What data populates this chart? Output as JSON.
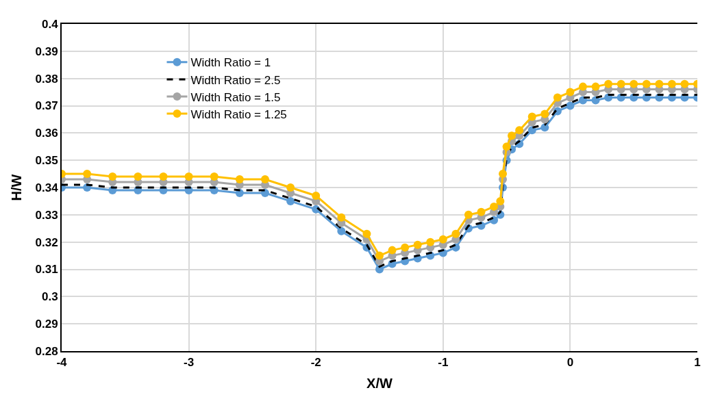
{
  "chart_data": {
    "type": "line",
    "xlabel": "X/W",
    "ylabel": "H/W",
    "x": [
      -4,
      -3.8,
      -3.6,
      -3.4,
      -3.2,
      -3,
      -2.8,
      -2.6,
      -2.4,
      -2.2,
      -2,
      -1.8,
      -1.6,
      -1.5,
      -1.4,
      -1.3,
      -1.2,
      -1.1,
      -1,
      -0.9,
      -0.8,
      -0.7,
      -0.6,
      -0.55,
      -0.53,
      -0.5,
      -0.46,
      -0.4,
      -0.3,
      -0.2,
      -0.1,
      0,
      0.1,
      0.2,
      0.3,
      0.4,
      0.5,
      0.6,
      0.7,
      0.8,
      0.9,
      1
    ],
    "series": [
      {
        "name": "Width Ratio = 1",
        "color": "#5b9bd5",
        "marker": "circle",
        "line_style": "solid",
        "values": [
          0.34,
          0.34,
          0.339,
          0.339,
          0.339,
          0.339,
          0.339,
          0.338,
          0.338,
          0.335,
          0.332,
          0.324,
          0.318,
          0.31,
          0.312,
          0.313,
          0.314,
          0.315,
          0.316,
          0.318,
          0.325,
          0.326,
          0.328,
          0.33,
          0.34,
          0.35,
          0.354,
          0.356,
          0.361,
          0.362,
          0.368,
          0.37,
          0.372,
          0.372,
          0.373,
          0.373,
          0.373,
          0.373,
          0.373,
          0.373,
          0.373,
          0.373
        ]
      },
      {
        "name": "Width Ratio = 2.5",
        "color": "#000000",
        "marker": "none",
        "line_style": "dashed",
        "values": [
          0.341,
          0.341,
          0.34,
          0.34,
          0.34,
          0.34,
          0.34,
          0.339,
          0.339,
          0.336,
          0.333,
          0.325,
          0.319,
          0.311,
          0.313,
          0.314,
          0.315,
          0.316,
          0.317,
          0.319,
          0.326,
          0.327,
          0.329,
          0.331,
          0.341,
          0.351,
          0.355,
          0.357,
          0.362,
          0.363,
          0.369,
          0.371,
          0.373,
          0.373,
          0.374,
          0.374,
          0.374,
          0.374,
          0.374,
          0.374,
          0.374,
          0.374
        ]
      },
      {
        "name": "Width Ratio = 1.5",
        "color": "#a5a5a5",
        "marker": "circle",
        "line_style": "solid",
        "values": [
          0.343,
          0.343,
          0.342,
          0.342,
          0.342,
          0.342,
          0.342,
          0.341,
          0.341,
          0.338,
          0.335,
          0.327,
          0.321,
          0.313,
          0.315,
          0.316,
          0.317,
          0.318,
          0.319,
          0.321,
          0.328,
          0.329,
          0.331,
          0.333,
          0.343,
          0.353,
          0.357,
          0.359,
          0.364,
          0.365,
          0.371,
          0.373,
          0.375,
          0.375,
          0.376,
          0.376,
          0.376,
          0.376,
          0.376,
          0.376,
          0.376,
          0.376
        ]
      },
      {
        "name": "Width Ratio = 1.25",
        "color": "#ffc000",
        "marker": "circle",
        "line_style": "solid",
        "values": [
          0.345,
          0.345,
          0.344,
          0.344,
          0.344,
          0.344,
          0.344,
          0.343,
          0.343,
          0.34,
          0.337,
          0.329,
          0.323,
          0.315,
          0.317,
          0.318,
          0.319,
          0.32,
          0.321,
          0.323,
          0.33,
          0.331,
          0.333,
          0.335,
          0.345,
          0.355,
          0.359,
          0.361,
          0.366,
          0.367,
          0.373,
          0.375,
          0.377,
          0.377,
          0.378,
          0.378,
          0.378,
          0.378,
          0.378,
          0.378,
          0.378,
          0.378
        ]
      }
    ],
    "xlim": [
      -4,
      1
    ],
    "xticks": [
      -4,
      -3,
      -2,
      -1,
      0,
      1
    ],
    "ylim": [
      0.28,
      0.4
    ],
    "yticks": [
      0.28,
      0.29,
      0.3,
      0.31,
      0.32,
      0.33,
      0.34,
      0.35,
      0.36,
      0.37,
      0.38,
      0.39,
      0.4
    ],
    "grid": true,
    "legend": "top left"
  }
}
